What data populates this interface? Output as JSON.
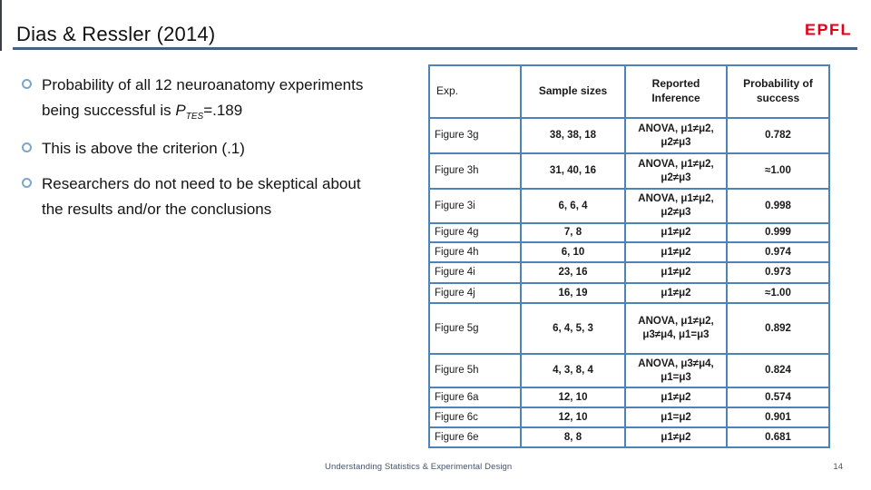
{
  "slide": {
    "title": "Dias & Ressler (2014)",
    "logo_text": "EPFL",
    "footer": "Understanding Statistics & Experimental Design",
    "page_number": "14"
  },
  "bullets": {
    "b1": {
      "lead": "Probability of all 12 neuroanatomy experiments\nbeing successful is ",
      "var": "P",
      "sub": "TES",
      "tail": "=.189"
    },
    "b2": "This is above the criterion (.1)",
    "b3": "Researchers do not need to be skeptical about\nthe results and/or the conclusions"
  },
  "table": {
    "headers": {
      "exp": "Exp.",
      "sizes": "Sample sizes",
      "inference": "Reported\nInference",
      "prob": "Probability of success"
    },
    "rows": [
      {
        "exp": "Figure 3g",
        "sizes": "38, 38, 18",
        "inference": "ANOVA, μ1≠μ2, μ2≠μ3",
        "prob": "0.782"
      },
      {
        "exp": "Figure 3h",
        "sizes": "31, 40, 16",
        "inference": "ANOVA, μ1≠μ2, μ2≠μ3",
        "prob": "≈1.00"
      },
      {
        "exp": "Figure 3i",
        "sizes": "6, 6, 4",
        "inference": "ANOVA, μ1≠μ2, μ2≠μ3",
        "prob": "0.998"
      },
      {
        "exp": "Figure 4g",
        "sizes": "7, 8",
        "inference": "μ1≠μ2",
        "prob": "0.999"
      },
      {
        "exp": "Figure 4h",
        "sizes": "6, 10",
        "inference": "μ1≠μ2",
        "prob": "0.974"
      },
      {
        "exp": "Figure 4i",
        "sizes": "23, 16",
        "inference": "μ1≠μ2",
        "prob": "0.973"
      },
      {
        "exp": "Figure 4j",
        "sizes": "16, 19",
        "inference": "μ1≠μ2",
        "prob": "≈1.00"
      },
      {
        "exp": "Figure 5g",
        "sizes": "6, 4, 5, 3",
        "inference": "ANOVA, μ1≠μ2, μ3≠μ4, μ1=μ3",
        "prob": "0.892"
      },
      {
        "exp": "Figure 5h",
        "sizes": "4, 3, 8, 4",
        "inference": "ANOVA, μ3≠μ4, μ1=μ3",
        "prob": "0.824"
      },
      {
        "exp": "Figure 6a",
        "sizes": "12, 10",
        "inference": "μ1≠μ2",
        "prob": "0.574"
      },
      {
        "exp": "Figure 6c",
        "sizes": "12, 10",
        "inference": "μ1=μ2",
        "prob": "0.901"
      },
      {
        "exp": "Figure 6e",
        "sizes": "8, 8",
        "inference": "μ1≠μ2",
        "prob": "0.681"
      }
    ]
  },
  "colors": {
    "table_border_blue": "#4d82bb",
    "title_underline": "#4a6080",
    "logo_red": "#e2001a",
    "bullet_ring_blue": "#7fa6c9",
    "footer_text": "#44546a"
  }
}
